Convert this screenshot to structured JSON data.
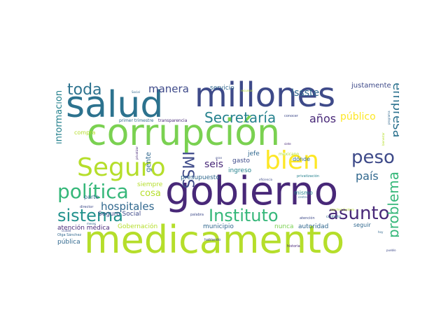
{
  "palette": {
    "purple": "#482878",
    "indigo": "#3e4a89",
    "blue": "#31688e",
    "teal": "#26828e",
    "seagreen": "#1f9e89",
    "green": "#35b779",
    "lightgreen": "#6ece58",
    "lime": "#b5de2b",
    "yellow": "#fde725"
  },
  "words": {
    "corrupcion": "corrupción",
    "medicamento": "medicamento",
    "gobierno": "gobierno",
    "salud": "salud",
    "millones": "millones",
    "seguro": "Seguro",
    "bien": "bien",
    "politica": "política",
    "sistema": "sistema",
    "instituto": "Instituto",
    "asunto": "asunto",
    "peso": "peso",
    "imss": "IMSS",
    "toda": "toda",
    "secretaria": "Secretaría",
    "empresa": "empresa",
    "problema": "problema",
    "manera": "manera",
    "issste": "Issste",
    "anos": "años",
    "publico": "público",
    "pais": "país",
    "hospitales": "hospitales",
    "informacion": "información",
    "seis": "seis",
    "cosa": "cosa",
    "gente": "gente",
    "justamente": "justamente",
    "seguro_social": "Seguro Social",
    "atencion_medica": "atención médica",
    "publica": "pública",
    "gobernacion": "Gobernación",
    "municipio": "municipio",
    "nunca": "nunca",
    "autoridad": "autoridad",
    "seguir": "seguir",
    "servicio": "servicio",
    "presupuesto": "presupuesto",
    "ingreso": "ingreso",
    "gasto": "gasto",
    "jefe": "jefe",
    "donde": "dónde",
    "mismo": "mismo",
    "siempre": "siempre",
    "parte": "parte",
    "compra": "compra",
    "primer_trimestre": "primer trimestre",
    "transparencia": "transparencia",
    "conocer": "conocer",
    "mexicano": "mexicano",
    "privatizacion": "privatización",
    "atencion": "atención",
    "contrato": "contrato",
    "hablando": "hablando",
    "historia": "historia",
    "palabra": "palabra",
    "director": "director",
    "meses": "meses",
    "ciudad": "ciudad",
    "olga": "Olga Sánchez",
    "hoy": "hoy",
    "pueblo": "pueblo",
    "recursos": "recursos",
    "social": "Social",
    "eficiencia": "eficiencia",
    "siete": "siete",
    "gran": "gran",
    "privatizar": "privatizar",
    "centro": "centro",
    "programa": "programa",
    "bienestar": "bienestar",
    "sanchez_cordero": "Sánchez Cordero"
  }
}
